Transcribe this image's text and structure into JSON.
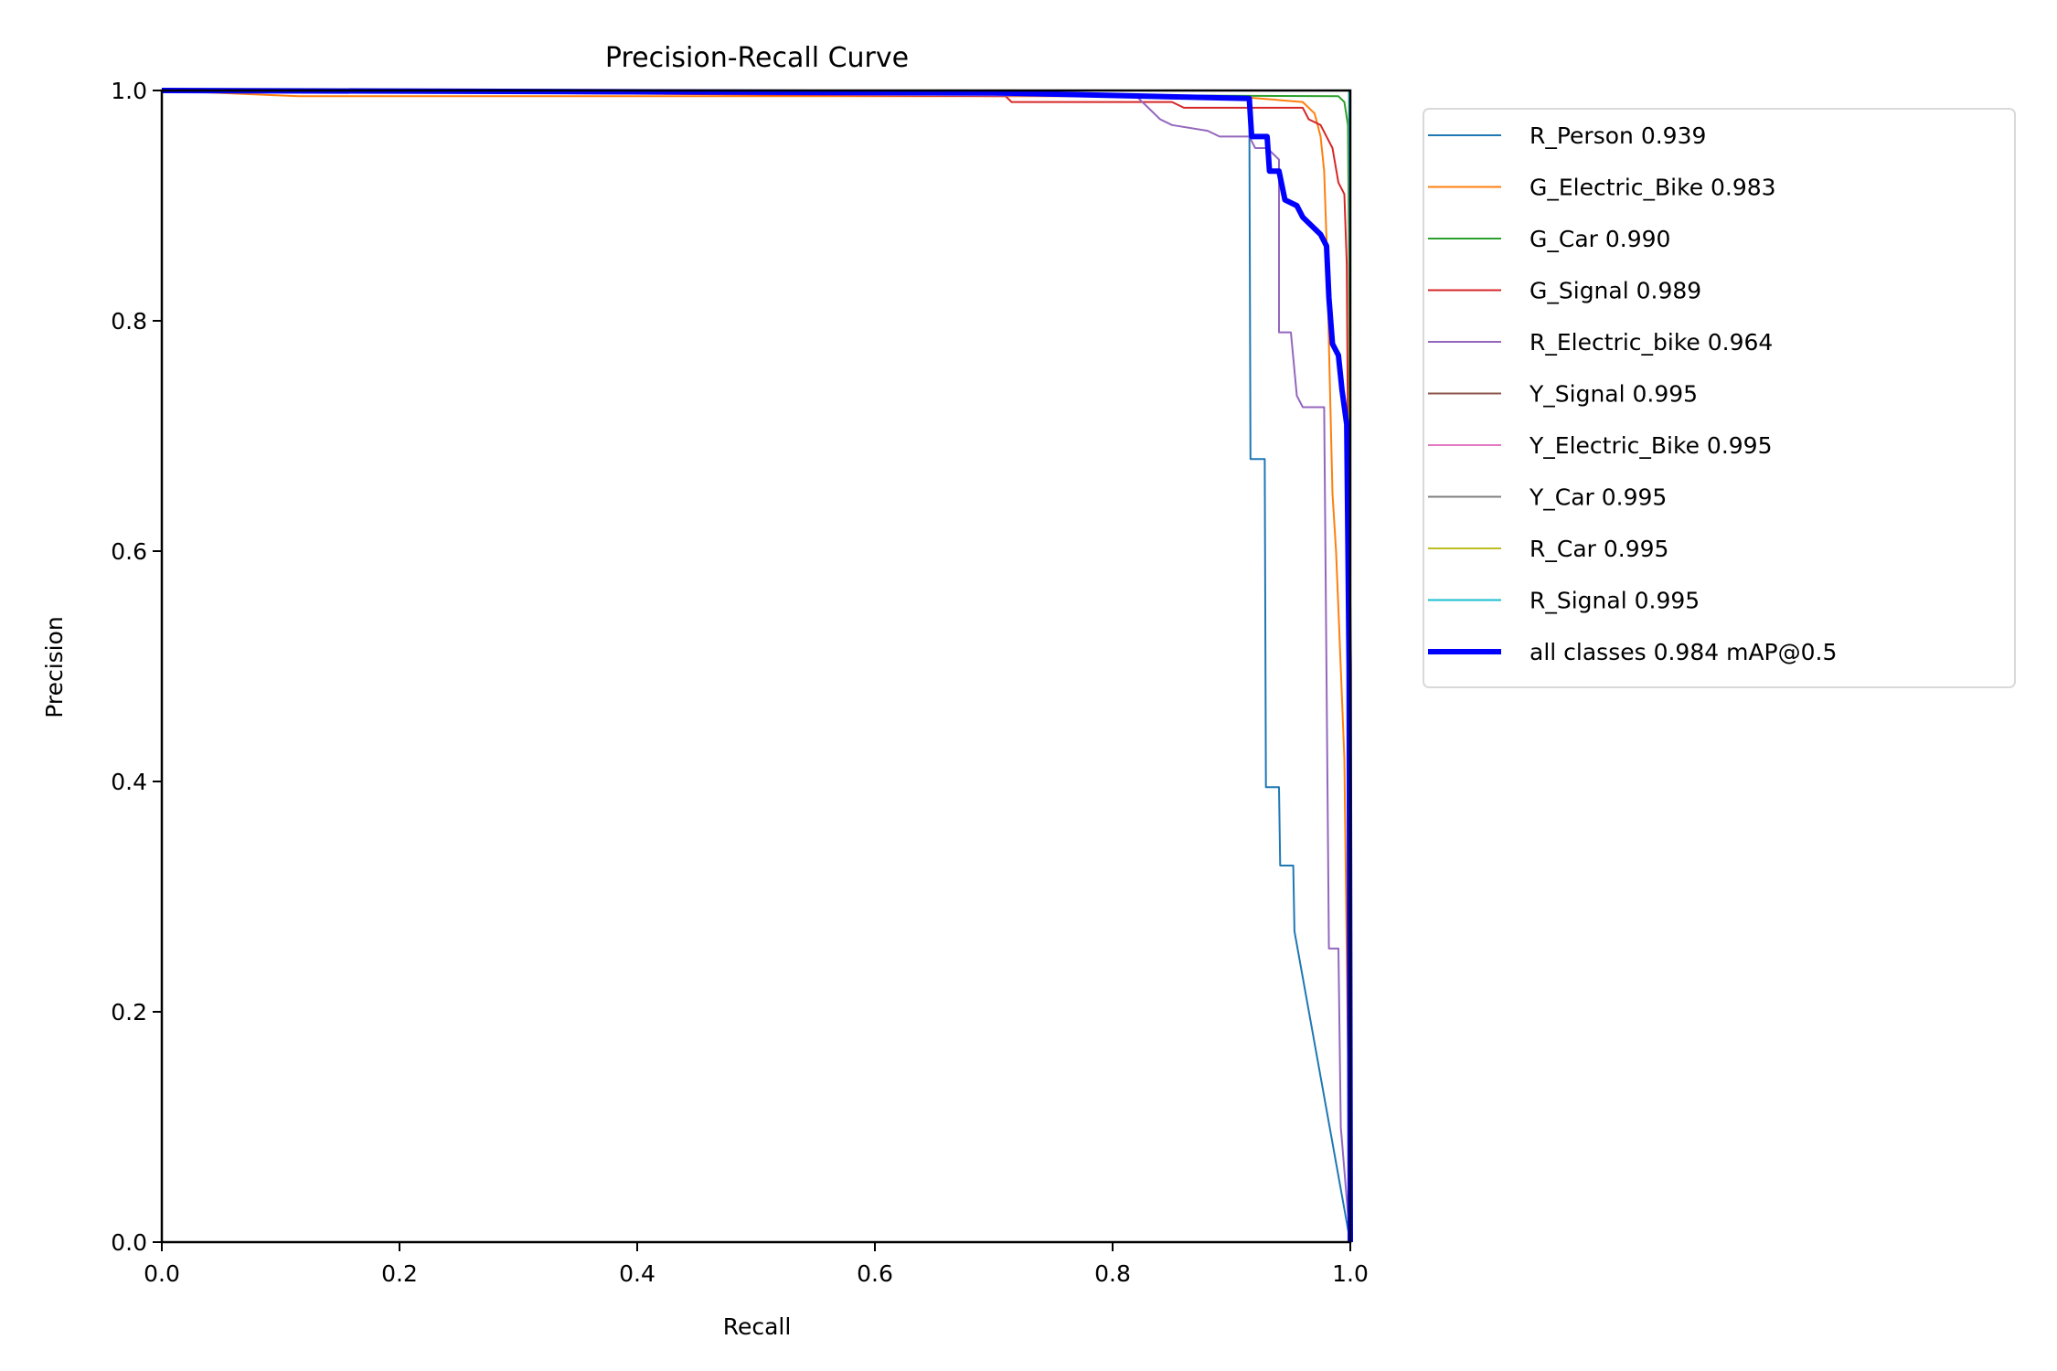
{
  "chart_data": {
    "type": "line",
    "title": "Precision-Recall Curve",
    "xlabel": "Recall",
    "ylabel": "Precision",
    "xlim": [
      0,
      1
    ],
    "ylim": [
      0,
      1
    ],
    "xticks": [
      "0.0",
      "0.2",
      "0.4",
      "0.6",
      "0.8",
      "1.0"
    ],
    "yticks": [
      "0.0",
      "0.2",
      "0.4",
      "0.6",
      "0.8",
      "1.0"
    ],
    "grid": false,
    "legend_placement": "outside-top-right",
    "series": [
      {
        "name": "R_Person 0.939",
        "color": "#1f77b4",
        "width": 2,
        "points": [
          [
            0,
            1
          ],
          [
            0.915,
            0.995
          ],
          [
            0.916,
            0.68
          ],
          [
            0.928,
            0.68
          ],
          [
            0.929,
            0.395
          ],
          [
            0.94,
            0.395
          ],
          [
            0.941,
            0.327
          ],
          [
            0.952,
            0.327
          ],
          [
            0.953,
            0.27
          ],
          [
            1,
            0.0
          ]
        ]
      },
      {
        "name": "G_Electric_Bike 0.983",
        "color": "#ff7f0e",
        "width": 2,
        "points": [
          [
            0,
            1
          ],
          [
            0.115,
            0.995
          ],
          [
            0.9,
            0.995
          ],
          [
            0.96,
            0.99
          ],
          [
            0.97,
            0.98
          ],
          [
            0.975,
            0.96
          ],
          [
            0.978,
            0.93
          ],
          [
            0.98,
            0.87
          ],
          [
            0.982,
            0.78
          ],
          [
            0.985,
            0.65
          ],
          [
            0.988,
            0.6
          ],
          [
            0.99,
            0.55
          ],
          [
            0.995,
            0.42
          ],
          [
            1,
            0
          ]
        ]
      },
      {
        "name": "G_Car 0.990",
        "color": "#2ca02c",
        "width": 2,
        "points": [
          [
            0,
            1
          ],
          [
            0.99,
            0.995
          ],
          [
            0.995,
            0.99
          ],
          [
            0.998,
            0.97
          ],
          [
            1,
            0.7
          ],
          [
            1,
            0
          ]
        ]
      },
      {
        "name": "G_Signal 0.989",
        "color": "#d62728",
        "width": 2,
        "points": [
          [
            0,
            1
          ],
          [
            0.71,
            0.995
          ],
          [
            0.715,
            0.99
          ],
          [
            0.85,
            0.99
          ],
          [
            0.86,
            0.985
          ],
          [
            0.96,
            0.985
          ],
          [
            0.965,
            0.975
          ],
          [
            0.975,
            0.97
          ],
          [
            0.98,
            0.96
          ],
          [
            0.985,
            0.95
          ],
          [
            0.99,
            0.92
          ],
          [
            0.995,
            0.91
          ],
          [
            0.997,
            0.85
          ],
          [
            1,
            0.42
          ],
          [
            1,
            0
          ]
        ]
      },
      {
        "name": "R_Electric_bike 0.964",
        "color": "#9467bd",
        "width": 2,
        "points": [
          [
            0,
            1
          ],
          [
            0.82,
            0.995
          ],
          [
            0.83,
            0.985
          ],
          [
            0.84,
            0.975
          ],
          [
            0.85,
            0.97
          ],
          [
            0.88,
            0.965
          ],
          [
            0.89,
            0.96
          ],
          [
            0.915,
            0.96
          ],
          [
            0.92,
            0.95
          ],
          [
            0.93,
            0.95
          ],
          [
            0.94,
            0.94
          ],
          [
            0.94,
            0.79
          ],
          [
            0.95,
            0.79
          ],
          [
            0.955,
            0.735
          ],
          [
            0.96,
            0.725
          ],
          [
            0.978,
            0.725
          ],
          [
            0.982,
            0.255
          ],
          [
            0.99,
            0.255
          ],
          [
            0.992,
            0.1
          ],
          [
            1,
            0
          ]
        ]
      },
      {
        "name": "Y_Signal 0.995",
        "color": "#8c564b",
        "width": 2,
        "points": [
          [
            0,
            1
          ],
          [
            0.999,
            1
          ],
          [
            1,
            0
          ]
        ]
      },
      {
        "name": "Y_Electric_Bike 0.995",
        "color": "#e377c2",
        "width": 2,
        "points": [
          [
            0,
            1
          ],
          [
            0.999,
            1
          ],
          [
            1,
            0
          ]
        ]
      },
      {
        "name": "Y_Car 0.995",
        "color": "#7f7f7f",
        "width": 2,
        "points": [
          [
            0,
            1
          ],
          [
            0.999,
            1
          ],
          [
            1,
            0
          ]
        ]
      },
      {
        "name": "R_Car 0.995",
        "color": "#bcbd22",
        "width": 2,
        "points": [
          [
            0,
            1
          ],
          [
            0.999,
            1
          ],
          [
            1,
            0
          ]
        ]
      },
      {
        "name": "R_Signal 0.995",
        "color": "#17becf",
        "width": 2,
        "points": [
          [
            0,
            1
          ],
          [
            0.999,
            1
          ],
          [
            1,
            0.7
          ],
          [
            1,
            0
          ]
        ]
      },
      {
        "name": "all classes 0.984 mAP@0.5",
        "color": "#0000ff",
        "width": 6,
        "points": [
          [
            0,
            1
          ],
          [
            0.7,
            0.998
          ],
          [
            0.915,
            0.993
          ],
          [
            0.917,
            0.96
          ],
          [
            0.93,
            0.96
          ],
          [
            0.932,
            0.93
          ],
          [
            0.94,
            0.93
          ],
          [
            0.945,
            0.905
          ],
          [
            0.955,
            0.9
          ],
          [
            0.96,
            0.89
          ],
          [
            0.975,
            0.875
          ],
          [
            0.98,
            0.865
          ],
          [
            0.982,
            0.82
          ],
          [
            0.985,
            0.78
          ],
          [
            0.99,
            0.77
          ],
          [
            0.993,
            0.74
          ],
          [
            0.997,
            0.71
          ],
          [
            0.999,
            0.5
          ],
          [
            1,
            0
          ]
        ]
      }
    ]
  }
}
